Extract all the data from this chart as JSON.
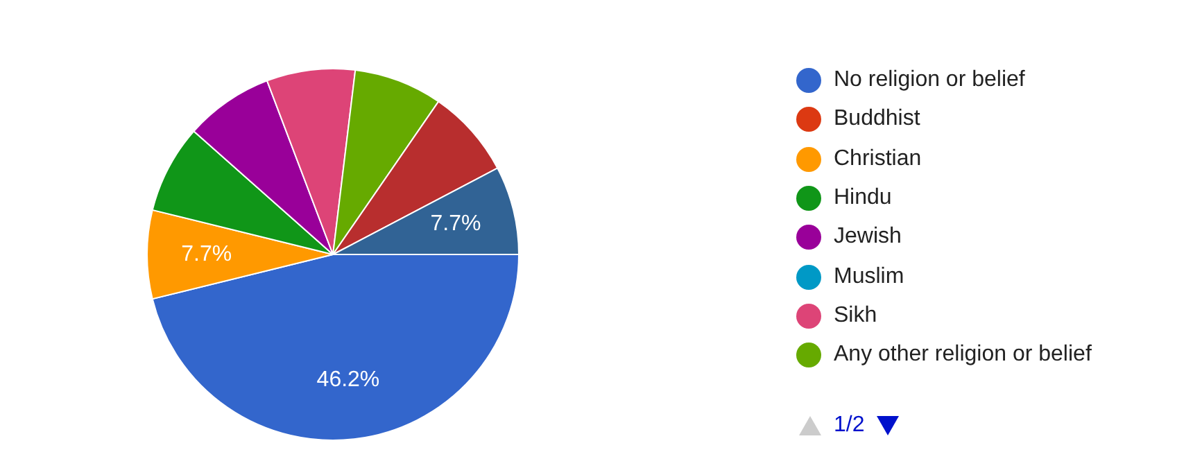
{
  "chart_data": {
    "type": "pie",
    "categories": [
      "No religion or belief",
      "Buddhist",
      "Christian",
      "Hindu",
      "Jewish",
      "Muslim",
      "Sikh",
      "Any other religion or belief",
      null,
      null
    ],
    "values": [
      46.2,
      0,
      7.7,
      7.7,
      7.7,
      0,
      7.7,
      7.7,
      7.7,
      7.7
    ],
    "colors": [
      "#3366cc",
      "#dc3912",
      "#ff9900",
      "#109618",
      "#990099",
      "#0099c6",
      "#dd4477",
      "#66aa00",
      "#b82e2e",
      "#316395"
    ],
    "value_labels": [
      "46.2%",
      null,
      "7.7%",
      null,
      null,
      null,
      null,
      null,
      null,
      "7.7%"
    ],
    "legend": "right",
    "annotations": [
      "1/2"
    ]
  }
}
